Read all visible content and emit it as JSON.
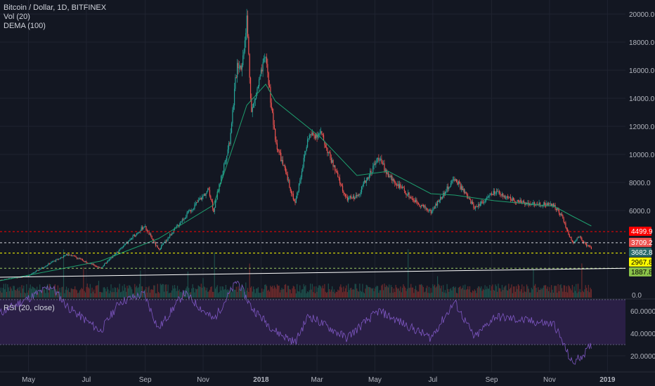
{
  "legend": {
    "symbol": "Bitcoin / Dollar, 1D, BITFINEX",
    "vol": "Vol (20)",
    "dema": "DEMA (100)",
    "rsi": "RSI (20, close)"
  },
  "colors": {
    "background": "#131722",
    "grid": "#1f2330",
    "up": "#26a69a",
    "down": "#ef5350",
    "vol_up": "#1d4e4a",
    "vol_down": "#6b2a2c",
    "dema": "#1e9e6e",
    "rsi_line": "#7e57c2",
    "rsi_band": "#2a1f45",
    "hline_red": "#ff0000",
    "hline_white": "#d1d4dc",
    "hline_yellow": "#ffff00",
    "hline_lightgreen": "#9ccc65",
    "axis_text": "#b2b5be"
  },
  "chart_data": {
    "type": "candlestick",
    "xlabel": "",
    "ylabel": "",
    "x_ticks": [
      "May",
      "Jul",
      "Sep",
      "Nov",
      "2018",
      "Mar",
      "May",
      "Jul",
      "Sep",
      "Nov",
      "2019"
    ],
    "x_range": [
      "2017-04-01",
      "2019-01-20"
    ],
    "price_axis": {
      "ticks": [
        "20000.0",
        "18000.0",
        "16000.0",
        "14000.0",
        "12000.0",
        "10000.0",
        "8000.0",
        "6000.0"
      ],
      "ylim": [
        0,
        20000
      ]
    },
    "volume_axis": {
      "ticks": [
        "0.0"
      ]
    },
    "rsi_axis": {
      "ticks": [
        "60.0000",
        "40.0000",
        "20.0000"
      ],
      "ylim": [
        10,
        90
      ],
      "band": [
        30,
        70
      ]
    },
    "price_labels": [
      {
        "label": "4499.9",
        "value": 4499.9,
        "bg": "#ff0000",
        "fg": "#ffffff"
      },
      {
        "label": "3709.2",
        "value": 3709.2,
        "bg": "#ef5350",
        "fg": "#ffffff"
      },
      {
        "label": "3682.8",
        "value": 3682.8,
        "bg": "#2a6b6b",
        "fg": "#ffffff"
      },
      {
        "label": "2967.8",
        "value": 2967.8,
        "bg": "#ffff00",
        "fg": "#000000"
      },
      {
        "label": "1887.8",
        "value": 1887.8,
        "bg": "#8bc34a",
        "fg": "#000000"
      }
    ],
    "horizontal_lines": [
      {
        "value": 4499.9,
        "color": "#ff0000",
        "style": "dashed"
      },
      {
        "value": 3709.2,
        "color": "#d1d4dc",
        "style": "dashed"
      },
      {
        "value": 2967.8,
        "color": "#ffff00",
        "style": "dashed"
      },
      {
        "value": 1887.8,
        "color": "#9ccc65",
        "style": "dashed"
      }
    ],
    "trendline": {
      "from": [
        "2017-04-01",
        1250
      ],
      "to": [
        "2019-01-20",
        1887.8
      ],
      "color": "#ffffff"
    },
    "price_keypoints": [
      [
        "2017-04-01",
        1050
      ],
      [
        "2017-05-01",
        1350
      ],
      [
        "2017-05-25",
        2300
      ],
      [
        "2017-06-12",
        2900
      ],
      [
        "2017-07-16",
        1900
      ],
      [
        "2017-08-05",
        3200
      ],
      [
        "2017-08-31",
        4900
      ],
      [
        "2017-09-15",
        3200
      ],
      [
        "2017-10-12",
        5500
      ],
      [
        "2017-11-07",
        7500
      ],
      [
        "2017-11-12",
        6000
      ],
      [
        "2017-11-29",
        11000
      ],
      [
        "2017-12-07",
        16500
      ],
      [
        "2017-12-12",
        16300
      ],
      [
        "2017-12-17",
        19700
      ],
      [
        "2017-12-22",
        13000
      ],
      [
        "2018-01-06",
        17000
      ],
      [
        "2018-01-16",
        11000
      ],
      [
        "2018-02-06",
        6500
      ],
      [
        "2018-02-20",
        11300
      ],
      [
        "2018-03-05",
        11500
      ],
      [
        "2018-04-01",
        6800
      ],
      [
        "2018-04-12",
        7000
      ],
      [
        "2018-05-05",
        9800
      ],
      [
        "2018-05-15",
        8500
      ],
      [
        "2018-06-10",
        6800
      ],
      [
        "2018-06-29",
        5900
      ],
      [
        "2018-07-24",
        8300
      ],
      [
        "2018-08-14",
        6200
      ],
      [
        "2018-09-04",
        7300
      ],
      [
        "2018-09-30",
        6600
      ],
      [
        "2018-10-14",
        6500
      ],
      [
        "2018-11-06",
        6400
      ],
      [
        "2018-11-14",
        5600
      ],
      [
        "2018-11-20",
        4500
      ],
      [
        "2018-11-25",
        3700
      ],
      [
        "2018-12-02",
        4150
      ],
      [
        "2018-12-10",
        3550
      ],
      [
        "2018-12-15",
        3300
      ]
    ],
    "dema_keypoints": [
      [
        "2017-04-01",
        1000
      ],
      [
        "2017-07-16",
        2400
      ],
      [
        "2017-09-15",
        4000
      ],
      [
        "2017-11-12",
        6400
      ],
      [
        "2017-12-17",
        13500
      ],
      [
        "2018-01-06",
        15000
      ],
      [
        "2018-01-16",
        13800
      ],
      [
        "2018-03-05",
        11200
      ],
      [
        "2018-04-12",
        8500
      ],
      [
        "2018-05-15",
        8800
      ],
      [
        "2018-06-29",
        7200
      ],
      [
        "2018-07-24",
        7100
      ],
      [
        "2018-09-04",
        6700
      ],
      [
        "2018-11-06",
        6300
      ],
      [
        "2018-11-25",
        5600
      ],
      [
        "2018-12-15",
        4900
      ]
    ],
    "rsi_keypoints": [
      [
        "2017-04-01",
        58
      ],
      [
        "2017-05-25",
        82
      ],
      [
        "2017-06-12",
        63
      ],
      [
        "2017-07-16",
        42
      ],
      [
        "2017-08-05",
        68
      ],
      [
        "2017-08-31",
        75
      ],
      [
        "2017-09-15",
        44
      ],
      [
        "2017-10-12",
        76
      ],
      [
        "2017-11-12",
        52
      ],
      [
        "2017-12-07",
        87
      ],
      [
        "2017-12-22",
        63
      ],
      [
        "2018-01-16",
        42
      ],
      [
        "2018-02-06",
        32
      ],
      [
        "2018-02-20",
        56
      ],
      [
        "2018-04-01",
        36
      ],
      [
        "2018-05-05",
        60
      ],
      [
        "2018-06-29",
        36
      ],
      [
        "2018-07-24",
        68
      ],
      [
        "2018-08-14",
        36
      ],
      [
        "2018-09-04",
        55
      ],
      [
        "2018-11-06",
        48
      ],
      [
        "2018-11-25",
        13
      ],
      [
        "2018-12-10",
        24
      ],
      [
        "2018-12-15",
        30
      ]
    ]
  }
}
